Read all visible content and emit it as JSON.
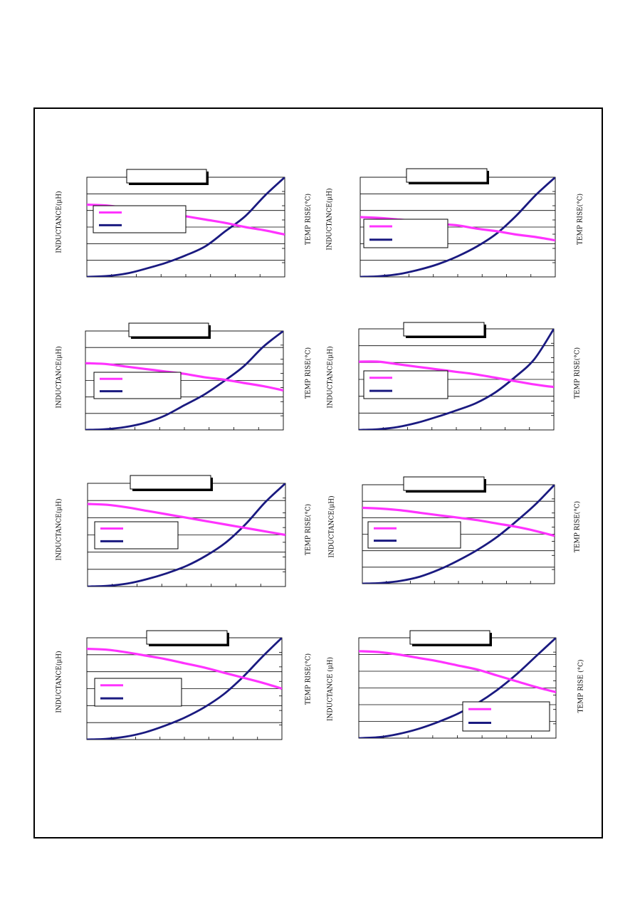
{
  "labels": {
    "y_left": "INDUCTANCE(μH)",
    "y_right": "TEMP RISE(°C)",
    "y_left_alt": "INDUCTANCE (μH)",
    "y_right_alt": "TEMP RISE (°C)"
  },
  "colors": {
    "inductance": "#ff33ff",
    "temp_rise": "#1a1a80",
    "grid": "#000000",
    "frame": "#000000"
  },
  "chart_data": [
    {
      "type": "line",
      "title": "",
      "xlabel": "",
      "ylabel": "INDUCTANCE(μH)",
      "y2label": "TEMP RISE(°C)",
      "grid": true,
      "legend": "middle-left",
      "x": [
        0,
        1,
        2,
        3,
        4,
        5,
        6,
        7,
        8,
        9,
        10
      ],
      "series": [
        {
          "values": [
            0.87,
            0.86,
            0.83,
            0.8,
            0.77,
            0.73,
            0.69,
            0.65,
            0.6,
            0.56,
            0.51
          ]
        },
        {
          "values": [
            0.0,
            0.01,
            0.04,
            0.1,
            0.17,
            0.26,
            0.37,
            0.55,
            0.73,
            0.98,
            1.2
          ]
        }
      ]
    },
    {
      "type": "line",
      "title": "",
      "xlabel": "",
      "ylabel": "INDUCTANCE(μH)",
      "y2label": "TEMP RISE(°C)",
      "grid": true,
      "legend": "middle-left",
      "x": [
        0,
        1,
        2,
        3,
        4,
        5,
        6,
        7,
        8,
        9,
        10
      ],
      "series": [
        {
          "values": [
            0.72,
            0.71,
            0.69,
            0.67,
            0.64,
            0.62,
            0.58,
            0.55,
            0.51,
            0.48,
            0.44
          ]
        },
        {
          "values": [
            0.0,
            0.01,
            0.04,
            0.1,
            0.18,
            0.29,
            0.43,
            0.61,
            0.86,
            1.15,
            1.4
          ]
        }
      ]
    },
    {
      "type": "line",
      "title": "",
      "xlabel": "",
      "ylabel": "INDUCTANCE(μH)",
      "y2label": "TEMP RISE(°C)",
      "grid": true,
      "legend": "middle-left",
      "x": [
        0,
        1,
        2,
        3,
        4,
        5,
        6,
        7,
        8,
        9,
        10
      ],
      "series": [
        {
          "values": [
            0.81,
            0.8,
            0.77,
            0.74,
            0.71,
            0.68,
            0.64,
            0.61,
            0.57,
            0.53,
            0.48
          ]
        },
        {
          "values": [
            0.0,
            0.01,
            0.04,
            0.1,
            0.2,
            0.35,
            0.5,
            0.69,
            0.9,
            1.18,
            1.4
          ]
        }
      ]
    },
    {
      "type": "line",
      "title": "",
      "xlabel": "",
      "ylabel": "INDUCTANCE(μH)",
      "y2label": "TEMP RISE(°C)",
      "grid": true,
      "legend": "middle-left",
      "x": [
        0,
        1,
        2,
        3,
        4,
        5,
        6,
        7,
        8,
        9,
        10
      ],
      "series": [
        {
          "values": [
            0.81,
            0.81,
            0.78,
            0.75,
            0.72,
            0.69,
            0.66,
            0.62,
            0.58,
            0.54,
            0.51
          ]
        },
        {
          "values": [
            0.0,
            0.01,
            0.04,
            0.1,
            0.18,
            0.27,
            0.37,
            0.52,
            0.73,
            0.98,
            1.4
          ]
        }
      ]
    },
    {
      "type": "line",
      "title": "",
      "xlabel": "",
      "ylabel": "INDUCTANCE(μH)",
      "y2label": "TEMP RISE(°C)",
      "grid": true,
      "legend": "middle-left",
      "x": [
        0,
        1,
        2,
        3,
        4,
        5,
        6,
        7,
        8,
        9,
        10
      ],
      "series": [
        {
          "values": [
            0.96,
            0.95,
            0.92,
            0.88,
            0.84,
            0.8,
            0.76,
            0.72,
            0.68,
            0.64,
            0.6
          ]
        },
        {
          "values": [
            0.0,
            0.01,
            0.04,
            0.1,
            0.18,
            0.28,
            0.42,
            0.6,
            0.85,
            1.15,
            1.4
          ]
        }
      ]
    },
    {
      "type": "line",
      "title": "",
      "xlabel": "",
      "ylabel": "INDUCTANCE(μH)",
      "y2label": "TEMP RISE(°C)",
      "grid": true,
      "legend": "middle-left",
      "x": [
        0,
        1,
        2,
        3,
        4,
        5,
        6,
        7,
        8,
        9,
        10
      ],
      "series": [
        {
          "values": [
            0.92,
            0.91,
            0.89,
            0.86,
            0.83,
            0.8,
            0.77,
            0.73,
            0.69,
            0.64,
            0.58
          ]
        },
        {
          "values": [
            0.0,
            0.01,
            0.04,
            0.1,
            0.2,
            0.33,
            0.48,
            0.66,
            0.88,
            1.12,
            1.4
          ]
        }
      ]
    },
    {
      "type": "line",
      "title": "",
      "xlabel": "",
      "ylabel": "INDUCTANCE(μH)",
      "y2label": "TEMP RISE(°C)",
      "grid": true,
      "legend": "middle-left",
      "x": [
        0,
        1,
        2,
        3,
        4,
        5,
        6,
        7,
        8,
        9,
        10
      ],
      "series": [
        {
          "values": [
            1.07,
            1.06,
            1.03,
            0.99,
            0.95,
            0.9,
            0.85,
            0.79,
            0.73,
            0.67,
            0.6
          ]
        },
        {
          "values": [
            0.0,
            0.01,
            0.04,
            0.1,
            0.19,
            0.3,
            0.44,
            0.62,
            0.86,
            1.14,
            1.4
          ]
        }
      ]
    },
    {
      "type": "line",
      "title": "",
      "xlabel": "",
      "ylabel": "INDUCTANCE (μH)",
      "y2label": "TEMP RISE (°C)",
      "grid": true,
      "legend": "lower-right",
      "x": [
        0,
        1,
        2,
        3,
        4,
        5,
        6,
        7,
        8,
        9,
        10
      ],
      "series": [
        {
          "values": [
            1.04,
            1.03,
            1.0,
            0.96,
            0.92,
            0.87,
            0.82,
            0.75,
            0.68,
            0.61,
            0.55
          ]
        },
        {
          "values": [
            0.0,
            0.02,
            0.09,
            0.2,
            0.35,
            0.53,
            0.76,
            1.05,
            1.4,
            1.8,
            2.2
          ]
        }
      ]
    }
  ]
}
